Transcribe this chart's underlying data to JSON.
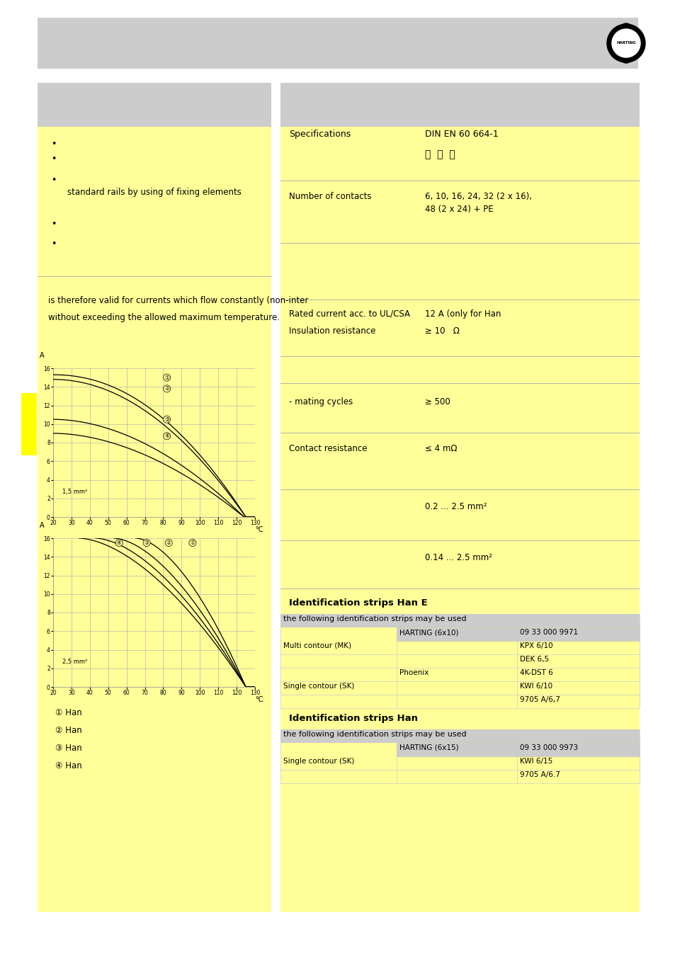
{
  "bg_color": "#ffffff",
  "gray_color": "#cccccc",
  "yellow_color": "#fffe99",
  "yellow_bright": "#ffff00",
  "bullet_texts": [
    "",
    "",
    "standard rails by using of fixing elements",
    "",
    ""
  ],
  "text1": "is therefore valid for currents which flow constantly (non-inter",
  "text2": "without exceeding the allowed maximum temperature.",
  "chart1_label": "1,5 mm²",
  "chart2_label": "2,5 mm²",
  "legend_labels": [
    "① Han",
    "② Han",
    "③ Han",
    "④ Han"
  ],
  "specs_title": "Specifications",
  "specs_value": "DIN EN 60 664-1",
  "num_contacts_label": "Number of contacts",
  "num_contacts_v1": "6, 10, 16, 24, 32 (2 x 16),",
  "num_contacts_v2": "48 (2 x 24) + PE",
  "rated_label": "Rated current acc. to UL/CSA",
  "rated_value": "12 A (only for Han",
  "insulation_label": "Insulation resistance",
  "insulation_value": "≥ 10   Ω",
  "mating_label": "- mating cycles",
  "mating_value": "≥ 500",
  "contact_label": "Contact resistance",
  "contact_value": "≤ 4 mΩ",
  "wire1": "0.2 ... 2.5 mm²",
  "wire2": "0.14 ... 2.5 mm²",
  "id_han_e": "Identification strips Han E",
  "id_han": "Identification strips Han",
  "tbl_hdr": "the following identification strips may be used",
  "col2_e_hdr": "HARTING (6x10)",
  "col3_e_hdr": "09 33 000 9971",
  "col2_h_hdr": "HARTING (6x15)",
  "col3_h_hdr": "09 33 000 9973",
  "table_e": [
    [
      "Multi contour (MK)",
      "",
      "KPX 6/10"
    ],
    [
      "",
      "",
      "DEK 6,5"
    ],
    [
      "",
      "Phoenix",
      "4K-DST 6"
    ],
    [
      "Single contour (SK)",
      "",
      "KWI 6/10"
    ],
    [
      "",
      "",
      "9705 A/6,7"
    ]
  ],
  "table_h": [
    [
      "Single contour (SK)",
      "",
      "KWI 6/15"
    ],
    [
      "",
      "",
      "9705 A/6.7"
    ]
  ]
}
